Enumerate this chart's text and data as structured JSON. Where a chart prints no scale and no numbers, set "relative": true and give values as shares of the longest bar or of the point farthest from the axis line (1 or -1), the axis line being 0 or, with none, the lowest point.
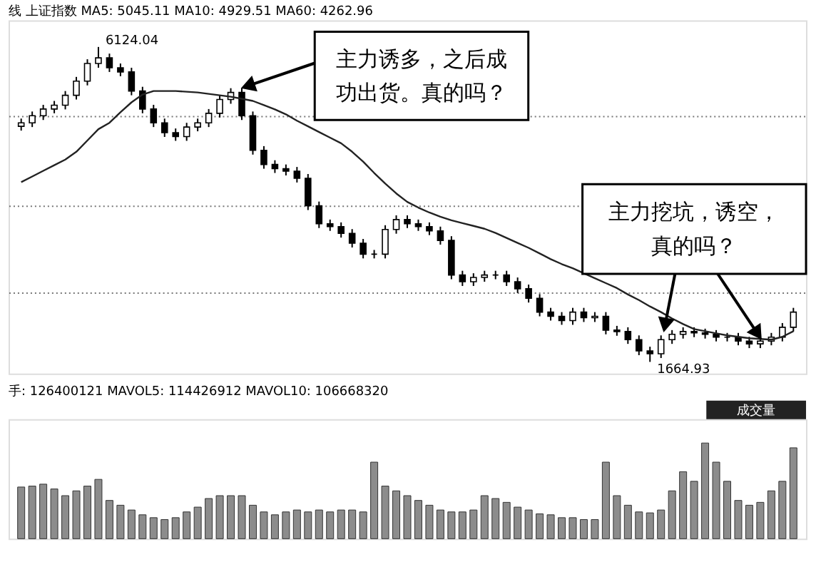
{
  "chart_data": [
    {
      "type": "candlestick",
      "title": "线 上证指数 MA5: 5045.11 MA10: 4929.51 MA60: 4262.96",
      "relative": false,
      "tick_labels": false,
      "grid": "y",
      "categories": [
        null,
        null,
        null,
        null,
        null,
        null,
        null,
        null,
        null,
        null,
        null,
        null,
        null,
        null,
        null,
        null,
        null,
        null,
        null,
        null,
        null,
        null,
        null,
        null,
        null,
        null,
        null,
        null,
        null,
        null,
        null,
        null,
        null,
        null,
        null,
        null,
        null,
        null,
        null,
        null,
        null,
        null,
        null,
        null,
        null,
        null,
        null,
        null,
        null,
        null,
        null,
        null,
        null,
        null,
        null,
        null,
        null,
        null,
        null,
        null,
        null,
        null,
        null,
        null,
        null,
        null,
        null,
        null,
        null,
        null,
        null
      ],
      "ohlc": [
        [
          5000,
          5110,
          4940,
          5050
        ],
        [
          5050,
          5210,
          4990,
          5150
        ],
        [
          5150,
          5305,
          5090,
          5245
        ],
        [
          5245,
          5360,
          5185,
          5300
        ],
        [
          5300,
          5500,
          5240,
          5440
        ],
        [
          5440,
          5700,
          5380,
          5640
        ],
        [
          5640,
          5950,
          5580,
          5890
        ],
        [
          5890,
          6124.04,
          5830,
          5970
        ],
        [
          5970,
          6030,
          5770,
          5830
        ],
        [
          5830,
          5890,
          5710,
          5770
        ],
        [
          5770,
          5830,
          5440,
          5500
        ],
        [
          5500,
          5560,
          5185,
          5245
        ],
        [
          5245,
          5305,
          4990,
          5050
        ],
        [
          5050,
          5110,
          4850,
          4910
        ],
        [
          4910,
          4970,
          4795,
          4855
        ],
        [
          4855,
          5050,
          4795,
          4990
        ],
        [
          4990,
          5110,
          4930,
          5050
        ],
        [
          5050,
          5245,
          4990,
          5185
        ],
        [
          5185,
          5440,
          5125,
          5380
        ],
        [
          5380,
          5540,
          5320,
          5480
        ],
        [
          5480,
          5540,
          5090,
          5150
        ],
        [
          5150,
          5210,
          4600,
          4660
        ],
        [
          4660,
          4720,
          4400,
          4460
        ],
        [
          4460,
          4520,
          4340,
          4400
        ],
        [
          4400,
          4460,
          4305,
          4365
        ],
        [
          4365,
          4425,
          4205,
          4265
        ],
        [
          4265,
          4325,
          3815,
          3875
        ],
        [
          3875,
          3935,
          3560,
          3620
        ],
        [
          3620,
          3680,
          3520,
          3580
        ],
        [
          3580,
          3640,
          3425,
          3485
        ],
        [
          3485,
          3545,
          3285,
          3345
        ],
        [
          3345,
          3405,
          3130,
          3190
        ],
        [
          3190,
          3250,
          3130,
          3190
        ],
        [
          3190,
          3600,
          3130,
          3540
        ],
        [
          3540,
          3740,
          3480,
          3680
        ],
        [
          3680,
          3740,
          3560,
          3620
        ],
        [
          3620,
          3680,
          3520,
          3580
        ],
        [
          3580,
          3640,
          3460,
          3520
        ],
        [
          3520,
          3580,
          3325,
          3385
        ],
        [
          3385,
          3445,
          2835,
          2895
        ],
        [
          2895,
          2955,
          2740,
          2800
        ],
        [
          2800,
          2920,
          2740,
          2860
        ],
        [
          2860,
          2955,
          2800,
          2895
        ],
        [
          2895,
          2955,
          2835,
          2895
        ],
        [
          2895,
          2955,
          2740,
          2800
        ],
        [
          2800,
          2860,
          2640,
          2700
        ],
        [
          2700,
          2760,
          2505,
          2565
        ],
        [
          2565,
          2625,
          2310,
          2370
        ],
        [
          2370,
          2430,
          2250,
          2310
        ],
        [
          2310,
          2370,
          2190,
          2250
        ],
        [
          2250,
          2430,
          2190,
          2370
        ],
        [
          2370,
          2430,
          2230,
          2290
        ],
        [
          2290,
          2370,
          2230,
          2310
        ],
        [
          2310,
          2370,
          2055,
          2115
        ],
        [
          2115,
          2175,
          2035,
          2095
        ],
        [
          2095,
          2155,
          1920,
          1980
        ],
        [
          1980,
          2040,
          1760,
          1820
        ],
        [
          1820,
          1880,
          1664.93,
          1780
        ],
        [
          1780,
          2040,
          1720,
          1980
        ],
        [
          1980,
          2115,
          1920,
          2055
        ],
        [
          2055,
          2155,
          1995,
          2095
        ],
        [
          2095,
          2155,
          2015,
          2075
        ],
        [
          2075,
          2135,
          1995,
          2055
        ],
        [
          2055,
          2115,
          1955,
          2015
        ],
        [
          2015,
          2075,
          1955,
          2015
        ],
        [
          2015,
          2075,
          1900,
          1960
        ],
        [
          1960,
          2020,
          1860,
          1920
        ],
        [
          1920,
          2020,
          1860,
          1960
        ],
        [
          1960,
          2075,
          1900,
          2015
        ],
        [
          2015,
          2215,
          1955,
          2155
        ],
        [
          2155,
          2430,
          2095,
          2370
        ]
      ],
      "series": [
        {
          "type": "line",
          "color": "#222222",
          "values": [
            4210,
            4290,
            4370,
            4450,
            4530,
            4640,
            4800,
            4960,
            5050,
            5200,
            5340,
            5450,
            5500,
            5500,
            5500,
            5490,
            5480,
            5460,
            5440,
            5420,
            5390,
            5360,
            5300,
            5240,
            5170,
            5080,
            5000,
            4920,
            4840,
            4760,
            4640,
            4500,
            4340,
            4190,
            4050,
            3930,
            3850,
            3780,
            3720,
            3670,
            3630,
            3590,
            3550,
            3490,
            3420,
            3350,
            3280,
            3200,
            3120,
            3050,
            2990,
            2920,
            2850,
            2780,
            2710,
            2620,
            2540,
            2450,
            2370,
            2280,
            2200,
            2130,
            2100,
            2070,
            2040,
            2020,
            2000,
            1990,
            1980,
            2020,
            2100
          ]
        }
      ],
      "ylim": [
        1500,
        6500
      ],
      "yticks": [
        {
          "value": 5147,
          "label": null
        },
        {
          "value": 3875,
          "label": null
        },
        {
          "value": 2643,
          "label": null
        }
      ],
      "annotations": [
        "主力诱多，之后成功出货。真的吗？",
        "主力挖坑，诱空，真的吗？",
        "6124.04",
        "1664.93"
      ]
    },
    {
      "type": "bar",
      "title": "手: 126400121 MAVOL5: 114426912 MAVOL10: 106668320",
      "relative": true,
      "color": "#8c8c8c",
      "categories": [
        null,
        null,
        null,
        null,
        null,
        null,
        null,
        null,
        null,
        null,
        null,
        null,
        null,
        null,
        null,
        null,
        null,
        null,
        null,
        null,
        null,
        null,
        null,
        null,
        null,
        null,
        null,
        null,
        null,
        null,
        null,
        null,
        null,
        null,
        null,
        null,
        null,
        null,
        null,
        null,
        null,
        null,
        null,
        null,
        null,
        null,
        null,
        null,
        null,
        null,
        null,
        null,
        null,
        null,
        null,
        null,
        null,
        null,
        null,
        null,
        null,
        null,
        null,
        null,
        null,
        null,
        null,
        null,
        null,
        null,
        null
      ],
      "values": [
        0.54,
        0.55,
        0.57,
        0.52,
        0.45,
        0.5,
        0.55,
        0.62,
        0.4,
        0.35,
        0.3,
        0.25,
        0.22,
        0.2,
        0.22,
        0.28,
        0.33,
        0.42,
        0.45,
        0.45,
        0.45,
        0.35,
        0.28,
        0.25,
        0.28,
        0.3,
        0.28,
        0.3,
        0.28,
        0.3,
        0.3,
        0.28,
        0.8,
        0.55,
        0.5,
        0.45,
        0.4,
        0.35,
        0.3,
        0.28,
        0.28,
        0.3,
        0.45,
        0.42,
        0.38,
        0.33,
        0.3,
        0.26,
        0.25,
        0.22,
        0.22,
        0.2,
        0.2,
        0.8,
        0.45,
        0.35,
        0.28,
        0.27,
        0.3,
        0.5,
        0.7,
        0.6,
        1.0,
        0.8,
        0.6,
        0.4,
        0.35,
        0.38,
        0.5,
        0.6,
        0.95
      ],
      "annotations": [
        "成交量"
      ]
    }
  ]
}
